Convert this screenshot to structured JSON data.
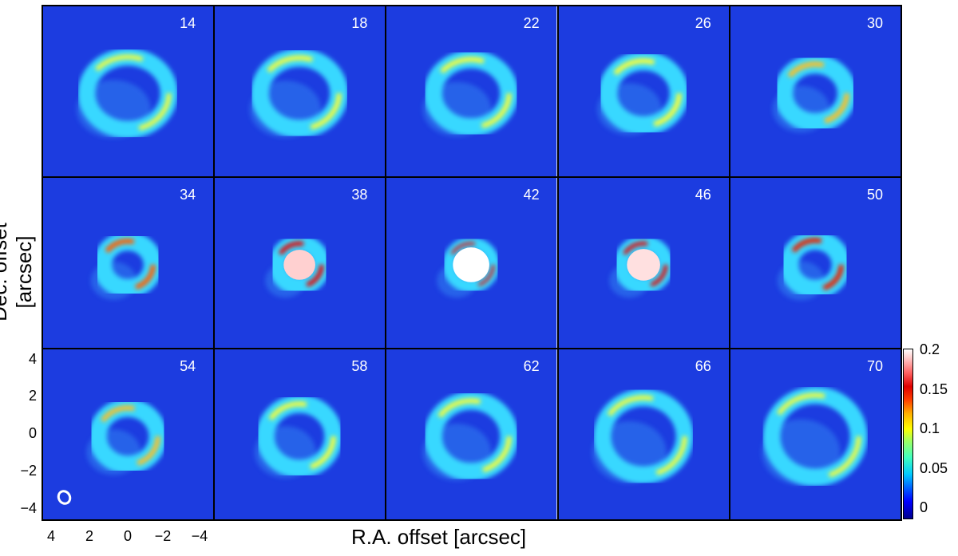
{
  "figure": {
    "panels": [
      {
        "velocity": "14",
        "ring": {
          "rx": 52,
          "ry": 46,
          "width": 16,
          "peak": "#ffff30",
          "core": false
        }
      },
      {
        "velocity": "18",
        "ring": {
          "rx": 50,
          "ry": 45,
          "width": 17,
          "peak": "#ffff30",
          "core": false
        }
      },
      {
        "velocity": "22",
        "ring": {
          "rx": 48,
          "ry": 43,
          "width": 17,
          "peak": "#ffff30",
          "core": false
        }
      },
      {
        "velocity": "26",
        "ring": {
          "rx": 45,
          "ry": 41,
          "width": 18,
          "peak": "#ffff30",
          "core": false
        }
      },
      {
        "velocity": "30",
        "ring": {
          "rx": 40,
          "ry": 37,
          "width": 18,
          "peak": "#ffc020",
          "core": false
        }
      },
      {
        "velocity": "34",
        "ring": {
          "rx": 32,
          "ry": 30,
          "width": 18,
          "peak": "#ff6000",
          "core": false
        }
      },
      {
        "velocity": "38",
        "ring": {
          "rx": 28,
          "ry": 27,
          "width": 16,
          "peak": "#e80000",
          "core": true,
          "coreColor": "#ffd0d0"
        }
      },
      {
        "velocity": "42",
        "ring": {
          "rx": 28,
          "ry": 27,
          "width": 10,
          "peak": "#e80000",
          "core": true,
          "coreColor": "#ffffff"
        }
      },
      {
        "velocity": "46",
        "ring": {
          "rx": 28,
          "ry": 27,
          "width": 14,
          "peak": "#e80000",
          "core": true,
          "coreColor": "#ffe0e0"
        }
      },
      {
        "velocity": "50",
        "ring": {
          "rx": 33,
          "ry": 31,
          "width": 18,
          "peak": "#e82000",
          "core": false
        }
      },
      {
        "velocity": "54",
        "ring": {
          "rx": 38,
          "ry": 36,
          "width": 17,
          "peak": "#ffc020",
          "core": false
        }
      },
      {
        "velocity": "58",
        "ring": {
          "rx": 43,
          "ry": 41,
          "width": 17,
          "peak": "#ffff30",
          "core": false
        }
      },
      {
        "velocity": "62",
        "ring": {
          "rx": 48,
          "ry": 45,
          "width": 17,
          "peak": "#ffff30",
          "core": false
        }
      },
      {
        "velocity": "66",
        "ring": {
          "rx": 52,
          "ry": 49,
          "width": 16,
          "peak": "#ffff30",
          "core": false
        }
      },
      {
        "velocity": "70",
        "ring": {
          "rx": 55,
          "ry": 52,
          "width": 16,
          "peak": "#ffff30",
          "core": false
        }
      }
    ],
    "axes": {
      "ylabel": "Dec. offset [arcsec]",
      "xlabel": "R.A. offset [arcsec]",
      "yticks": [
        "4",
        "2",
        "0",
        "−2",
        "−4"
      ],
      "xticks": [
        "4",
        "2",
        "0",
        "−2",
        "−4"
      ]
    },
    "colorbar": {
      "ticks": [
        "0.2",
        "0.15",
        "0.1",
        "0.05",
        "0"
      ]
    },
    "colors": {
      "background": "#1c3ce0",
      "ring_outer": "#38d8ff"
    }
  }
}
